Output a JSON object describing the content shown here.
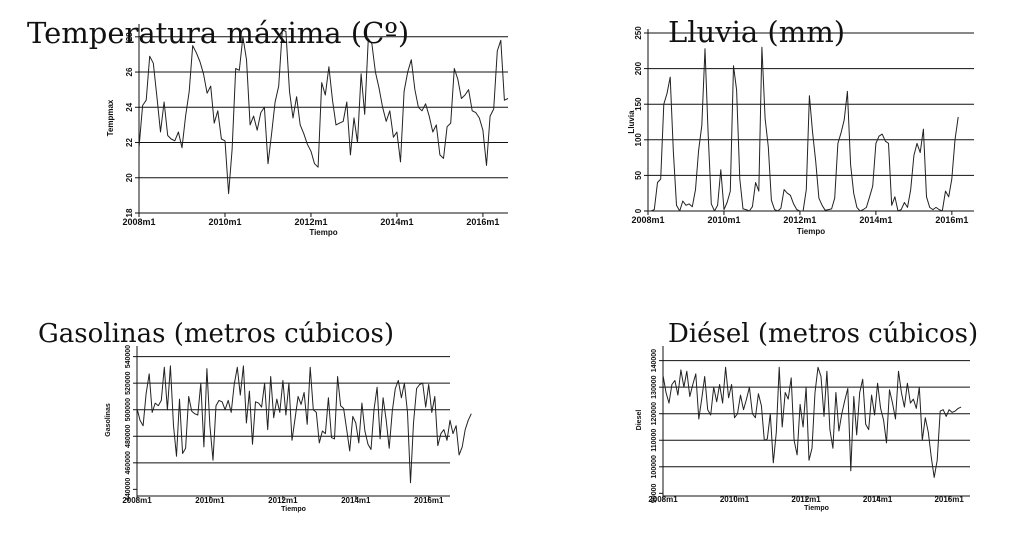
{
  "chart_data": [
    {
      "type": "line",
      "title": "Temperatura máxima (Cº)",
      "xlabel": "Tiempo",
      "ylabel": "Tempmax",
      "x_ticks": [
        "2008m1",
        "2010m1",
        "2012m1",
        "2014m1",
        "2016m1"
      ],
      "y_ticks": [
        "18",
        "20",
        "22",
        "24",
        "26",
        "28"
      ],
      "ylim": [
        18,
        28.5
      ],
      "grid": true,
      "series": [
        {
          "values": [
            21.7,
            24.1,
            24.4,
            26.9,
            26.5,
            24.6,
            22.6,
            24.3,
            22.4,
            22.2,
            22.1,
            22.6,
            21.7,
            23.5,
            24.9,
            27.5,
            27.1,
            26.6,
            25.9,
            24.8,
            25.2,
            23.1,
            23.8,
            22.2,
            22.1,
            19.1,
            21.6,
            26.2,
            26.1,
            28.0,
            26.7,
            23.0,
            23.5,
            22.7,
            23.7,
            24.0,
            20.8,
            22.5,
            24.3,
            25.2,
            28.4,
            28.3,
            24.9,
            23.4,
            24.6,
            23.0,
            22.5,
            21.9,
            21.5,
            20.8,
            20.6,
            25.4,
            24.7,
            26.3,
            24.4,
            23.0,
            23.1,
            23.2,
            24.3,
            21.3,
            23.4,
            22.0,
            25.9,
            23.6,
            27.9,
            27.6,
            26.0,
            25.1,
            24.0,
            23.2,
            23.8,
            22.3,
            22.6,
            20.9,
            24.9,
            26.0,
            26.7,
            25.0,
            24.0,
            23.8,
            24.2,
            23.5,
            22.6,
            23.0,
            21.3,
            21.1,
            22.9,
            23.1,
            26.2,
            25.6,
            24.5,
            24.7,
            25.0,
            23.8,
            23.7,
            23.4,
            22.7,
            20.7,
            23.5,
            23.9,
            27.2,
            27.8,
            24.4,
            24.5
          ]
        }
      ]
    },
    {
      "type": "line",
      "title": "Lluvia (mm)",
      "xlabel": "Tiempo",
      "ylabel": "Lluvia",
      "x_ticks": [
        "2008m1",
        "2010m1",
        "2012m1",
        "2014m1",
        "2016m1"
      ],
      "y_ticks": [
        "0",
        "50",
        "100",
        "150",
        "200",
        "250"
      ],
      "ylim": [
        0,
        250
      ],
      "grid": true,
      "series": [
        {
          "values": [
            0,
            0,
            2,
            40,
            45,
            150,
            165,
            188,
            85,
            8,
            0,
            14,
            8,
            10,
            6,
            30,
            85,
            120,
            228,
            110,
            10,
            0,
            8,
            58,
            2,
            12,
            28,
            204,
            170,
            45,
            3,
            2,
            0,
            6,
            40,
            28,
            230,
            130,
            90,
            15,
            2,
            0,
            4,
            30,
            25,
            22,
            10,
            2,
            0,
            0,
            30,
            162,
            110,
            70,
            18,
            8,
            1,
            2,
            3,
            18,
            95,
            110,
            128,
            168,
            65,
            25,
            5,
            0,
            2,
            5,
            20,
            35,
            95,
            105,
            108,
            98,
            95,
            8,
            20,
            0,
            2,
            12,
            5,
            30,
            78,
            95,
            82,
            115,
            20,
            5,
            2,
            5,
            2,
            0,
            28,
            20,
            45,
            100,
            132
          ]
        }
      ]
    },
    {
      "type": "line",
      "title": "Gasolinas (metros cúbicos)",
      "xlabel": "Tiempo",
      "ylabel": "Gasolinas",
      "x_ticks": [
        "2008m1",
        "2010m1",
        "2012m1",
        "2014m1",
        "2016m1"
      ],
      "y_ticks": [
        "440000",
        "460000",
        "480000",
        "500000",
        "520000",
        "540000"
      ],
      "ylim": [
        435000,
        545000
      ],
      "grid": true,
      "series": [
        {
          "values": [
            501000,
            492000,
            488000,
            512000,
            527000,
            498000,
            505000,
            503000,
            507000,
            532000,
            500000,
            533000,
            488000,
            465000,
            508000,
            467000,
            471000,
            510000,
            499000,
            497000,
            496000,
            520000,
            472000,
            531000,
            488000,
            462000,
            503000,
            507000,
            506000,
            500000,
            507000,
            498000,
            519000,
            532000,
            511000,
            533000,
            490000,
            514000,
            474000,
            506000,
            505000,
            502000,
            520000,
            485000,
            525000,
            494000,
            508000,
            498000,
            522000,
            496000,
            520000,
            477000,
            493000,
            510000,
            504000,
            513000,
            489000,
            532000,
            500000,
            498000,
            475000,
            484000,
            482000,
            509000,
            479000,
            478000,
            525000,
            503000,
            501000,
            485000,
            469000,
            495000,
            490000,
            475000,
            505000,
            484000,
            474000,
            470000,
            500000,
            517000,
            478000,
            509000,
            492000,
            471000,
            499000,
            516000,
            522000,
            509000,
            520000,
            498000,
            445000,
            490000,
            516000,
            519000,
            520000,
            502000,
            519000,
            498000,
            510000,
            473000,
            482000,
            485000,
            477000,
            492000,
            482000,
            488000,
            466000,
            472000,
            485000,
            492000,
            497000
          ]
        }
      ]
    },
    {
      "type": "line",
      "title": "Diésel (metros cúbicos)",
      "xlabel": "Tiempo",
      "ylabel": "Diesel",
      "x_ticks": [
        "2008m1",
        "2010m1",
        "2012m1",
        "2014m1",
        "2016m1"
      ],
      "y_ticks": [
        "90000",
        "100000",
        "110000",
        "120000",
        "130000",
        "140000"
      ],
      "ylim": [
        89000,
        144000
      ],
      "grid": true,
      "series": [
        {
          "values": [
            134500,
            128000,
            124000,
            131000,
            132500,
            127000,
            136500,
            130000,
            136000,
            126500,
            131000,
            135000,
            118000,
            125500,
            134000,
            121500,
            119500,
            130000,
            124500,
            131000,
            124000,
            137500,
            126000,
            131000,
            118500,
            120000,
            127000,
            121500,
            125500,
            130000,
            120000,
            118500,
            127500,
            123000,
            110000,
            110500,
            120000,
            101500,
            113000,
            137500,
            115000,
            128000,
            125500,
            133500,
            110000,
            104500,
            123500,
            115000,
            130000,
            102500,
            107000,
            128000,
            137500,
            134000,
            119000,
            136000,
            114000,
            107000,
            128000,
            113500,
            120000,
            125000,
            129500,
            98500,
            126500,
            112000,
            128000,
            133000,
            116000,
            114000,
            127000,
            119500,
            131500,
            122000,
            117500,
            109000,
            129000,
            124000,
            118000,
            136000,
            128000,
            122500,
            131500,
            124000,
            125500,
            122000,
            130000,
            110000,
            118500,
            113000,
            103500,
            96000,
            102500,
            121000,
            121500,
            119000,
            121500,
            120500,
            121000,
            122000,
            122500
          ]
        }
      ]
    }
  ]
}
